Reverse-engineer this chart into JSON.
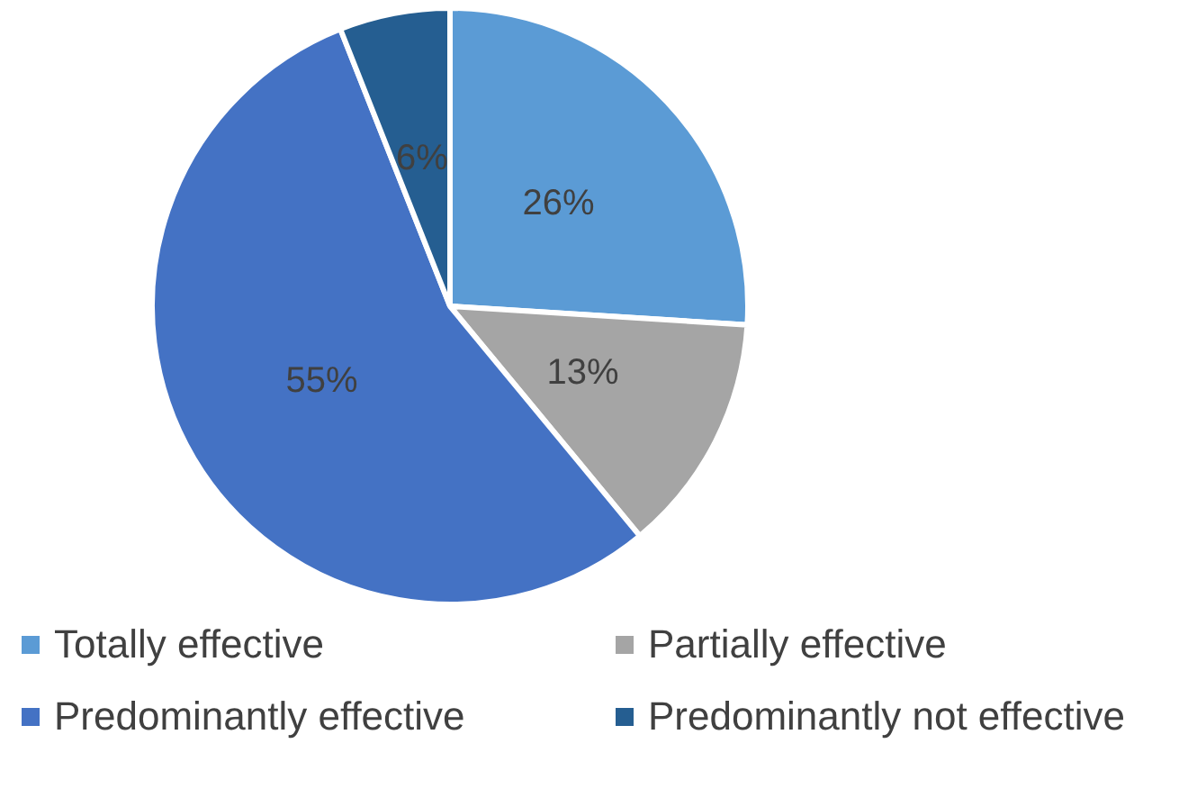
{
  "chart_data": {
    "type": "pie",
    "categories": [
      "Totally effective",
      "Partially effective",
      "Predominantly effective",
      "Predominantly not effective"
    ],
    "values": [
      26,
      13,
      55,
      6
    ],
    "colors": [
      "#5b9bd5",
      "#a5a5a5",
      "#4472c4",
      "#255e91"
    ],
    "value_labels": [
      "26%",
      "13%",
      "55%",
      "6%"
    ],
    "legend": "bottom"
  }
}
